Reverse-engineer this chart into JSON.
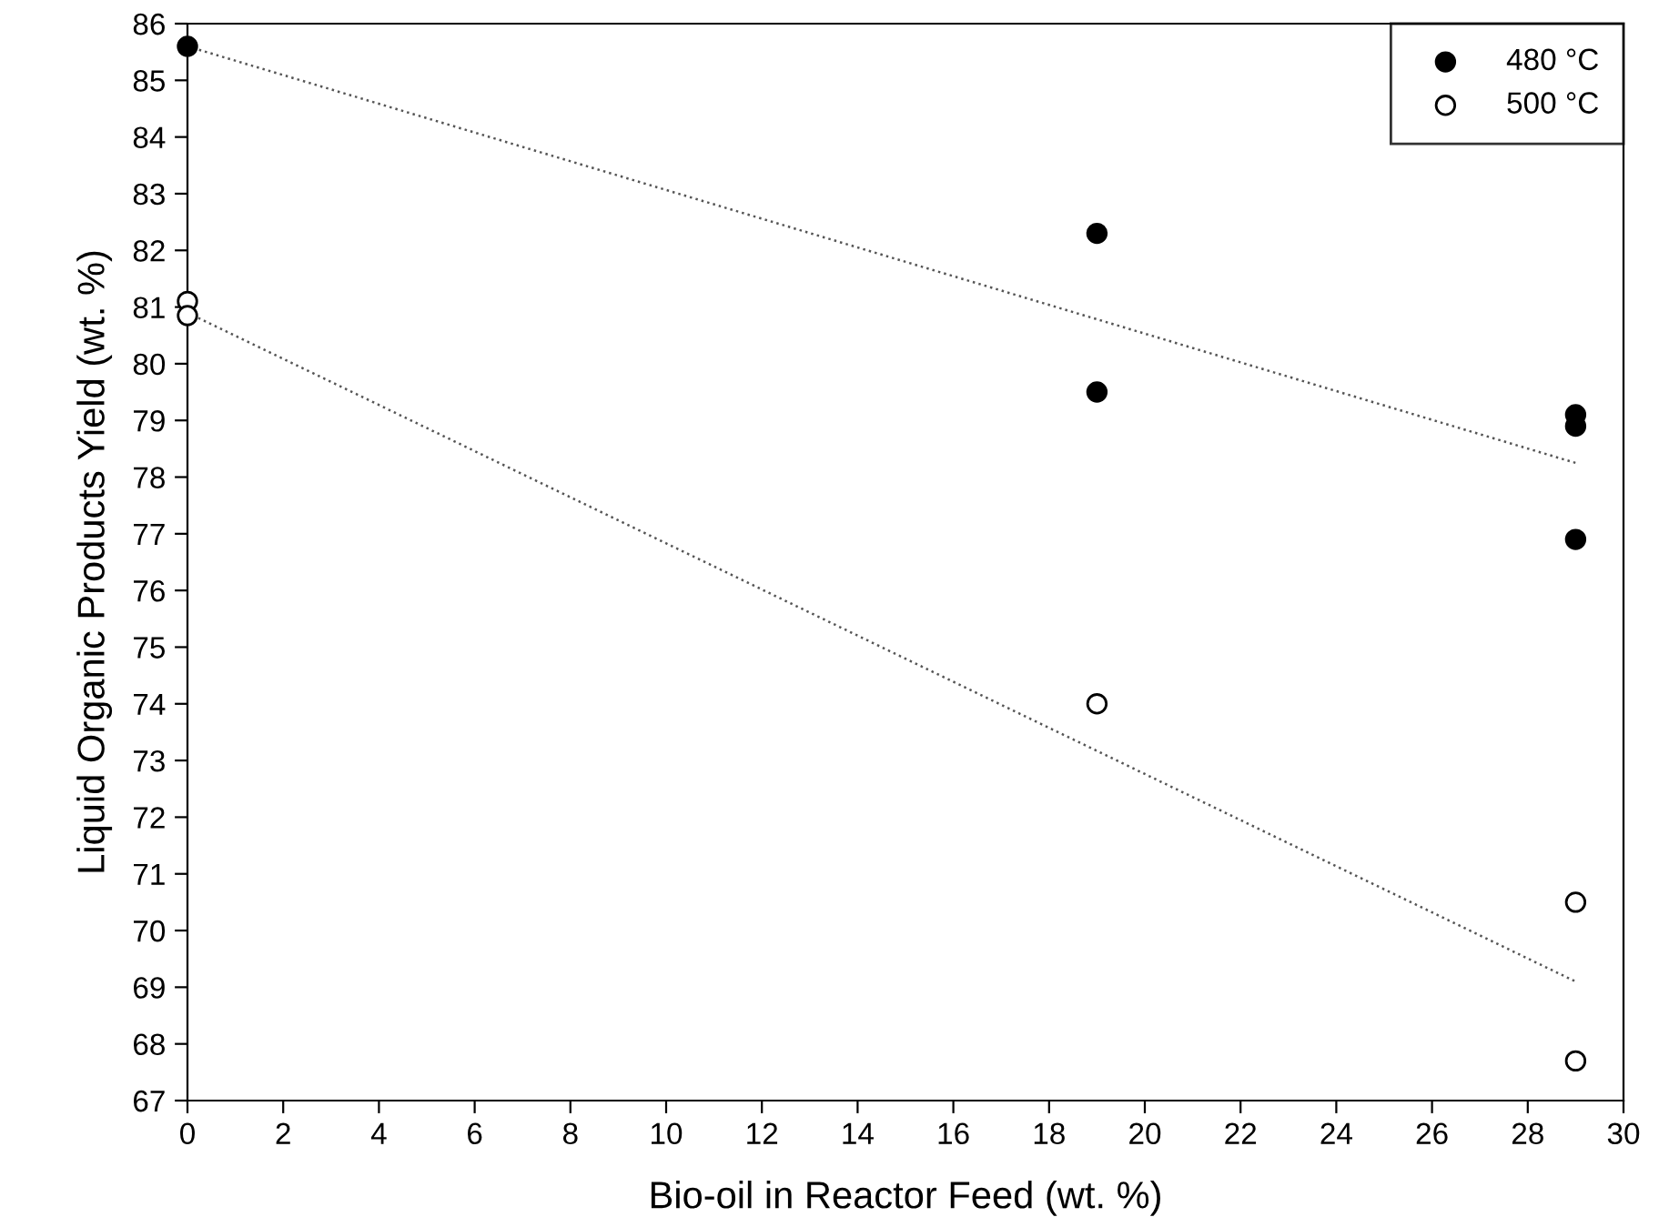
{
  "chart_data": {
    "type": "scatter",
    "xlabel": "Bio-oil in Reactor Feed (wt. %)",
    "ylabel": "Liquid Organic Products Yield (wt. %)",
    "xlim": [
      0,
      30
    ],
    "xticks": [
      0,
      2,
      4,
      6,
      8,
      10,
      12,
      14,
      16,
      18,
      20,
      22,
      24,
      26,
      28,
      30
    ],
    "ylim": [
      67,
      86
    ],
    "yticks": [
      67,
      68,
      69,
      70,
      71,
      72,
      73,
      74,
      75,
      76,
      77,
      78,
      79,
      80,
      81,
      82,
      83,
      84,
      85,
      86
    ],
    "grid": false,
    "legend": "top right",
    "marker": "circle",
    "series": [
      {
        "name": "480 °C",
        "color": "#000000",
        "x": [
          0,
          19,
          19,
          29,
          29,
          29
        ],
        "values": [
          85.6,
          82.3,
          79.5,
          79.1,
          78.9,
          76.9
        ]
      },
      {
        "name": "500 °C",
        "color": "#ffffff",
        "x": [
          0,
          0,
          19,
          29,
          29
        ],
        "values": [
          81.1,
          80.85,
          74.0,
          70.5,
          67.7
        ]
      },
      {
        "type": "line",
        "color": "#555555",
        "line_style": "dotted",
        "marker": "none",
        "x": [
          0,
          29
        ],
        "values": [
          85.6,
          78.25
        ]
      },
      {
        "type": "line",
        "color": "#555555",
        "line_style": "dotted",
        "marker": "none",
        "x": [
          0,
          29
        ],
        "values": [
          80.9,
          69.1
        ]
      }
    ]
  }
}
